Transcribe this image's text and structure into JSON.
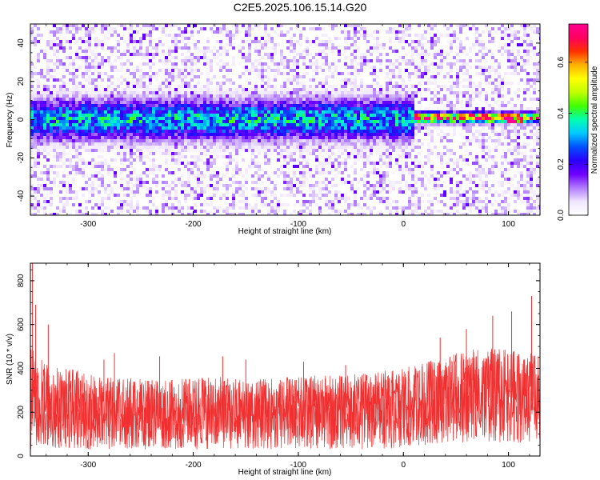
{
  "title": "C2E5.2025.106.15.14.G20",
  "chart_data": [
    {
      "type": "heatmap",
      "xlabel": "Height of straight line (km)",
      "ylabel": "Frequency (Hz)",
      "xlim": [
        -355,
        130
      ],
      "ylim": [
        -50,
        50
      ],
      "xticks": [
        -300,
        -200,
        -100,
        0,
        100
      ],
      "yticks": [
        -40,
        -20,
        0,
        20,
        40
      ],
      "grid": false,
      "colorbar": {
        "label": "Normalized spectral amplitude",
        "range": [
          0.0,
          0.75
        ],
        "ticks": [
          0.0,
          0.2,
          0.4,
          0.6
        ],
        "colormap": [
          "#ffffff",
          "#f0e6ff",
          "#b07cff",
          "#6f00ff",
          "#2a00ff",
          "#0050ff",
          "#00c8ff",
          "#00ffb0",
          "#40ff00",
          "#c0ff00",
          "#ffff00",
          "#ffb000",
          "#ff3000",
          "#ff0060",
          "#ff0090"
        ]
      },
      "features": [
        {
          "x_range": [
            -355,
            10
          ],
          "freq_center": 0,
          "freq_halfwidth": 10,
          "peak_amplitude": 0.35
        },
        {
          "x_range": [
            10,
            130
          ],
          "freq_center": 1,
          "freq_halfwidth": 2.5,
          "peak_amplitude": 0.75
        },
        {
          "x_range": [
            85,
            95
          ],
          "freq_center": 1.5,
          "freq_halfwidth": 1.5,
          "peak_amplitude": 0.75
        },
        {
          "x_range": [
            100,
            115
          ],
          "freq_center": -0.5,
          "freq_halfwidth": 1.5,
          "peak_amplitude": 0.75
        }
      ]
    },
    {
      "type": "line",
      "xlabel": "Height of straight line (km)",
      "ylabel": "SNR (10 * v/v)",
      "xlim": [
        -355,
        130
      ],
      "ylim": [
        0,
        880
      ],
      "xticks": [
        -300,
        -200,
        -100,
        0,
        100
      ],
      "yticks": [
        0,
        200,
        400,
        600,
        800
      ],
      "grid": false,
      "color": "#f03030",
      "series": [
        {
          "x": [
            -355,
            -340,
            -320,
            -300,
            -280,
            -260,
            -240,
            -220,
            -200,
            -180,
            -160,
            -140,
            -120,
            -100,
            -80,
            -60,
            -40,
            -20,
            0,
            20,
            40,
            60,
            80,
            100,
            120,
            130
          ],
          "median": [
            170,
            180,
            175,
            170,
            175,
            175,
            170,
            170,
            175,
            175,
            175,
            170,
            175,
            180,
            180,
            185,
            190,
            195,
            200,
            215,
            230,
            250,
            260,
            255,
            250,
            250
          ],
          "upper": [
            500,
            420,
            400,
            380,
            360,
            360,
            350,
            350,
            360,
            360,
            360,
            350,
            360,
            360,
            370,
            370,
            380,
            390,
            400,
            430,
            460,
            480,
            500,
            490,
            470,
            460
          ],
          "lower": [
            30,
            30,
            30,
            30,
            30,
            30,
            30,
            30,
            30,
            30,
            30,
            30,
            30,
            30,
            30,
            30,
            30,
            30,
            40,
            50,
            60,
            60,
            60,
            60,
            60,
            60
          ],
          "peaks": [
            {
              "x": -353,
              "y": 880
            },
            {
              "x": -350,
              "y": 690
            },
            {
              "x": -338,
              "y": 600
            },
            {
              "x": -285,
              "y": 440
            },
            {
              "x": -275,
              "y": 470
            },
            {
              "x": -232,
              "y": 455
            },
            {
              "x": -172,
              "y": 455
            },
            {
              "x": -150,
              "y": 440
            },
            {
              "x": -95,
              "y": 430
            },
            {
              "x": -55,
              "y": 415
            },
            {
              "x": 35,
              "y": 540
            },
            {
              "x": 60,
              "y": 580
            },
            {
              "x": 85,
              "y": 640
            },
            {
              "x": 103,
              "y": 660
            },
            {
              "x": 122,
              "y": 730
            }
          ]
        }
      ]
    }
  ]
}
